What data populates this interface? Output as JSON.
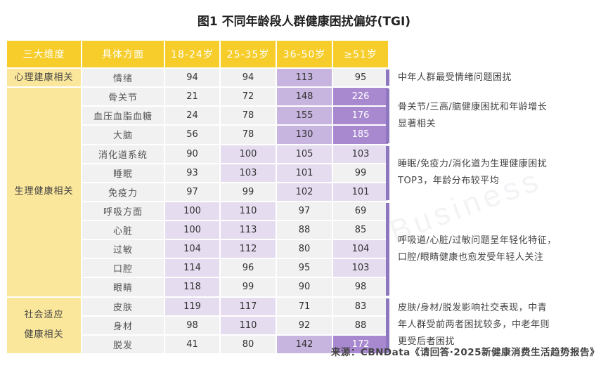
{
  "title": "图1 不同年龄段人群健康困扰偏好(TGI)",
  "watermark": "新营养",
  "watermark_sub": "New Nutrition Business",
  "source": "来源：CBNData《请回答·2025新健康消费生活趋势报告》",
  "colors": {
    "header": "#f6cd2a",
    "category": "#fbe79b",
    "neutral": "#f1f1f1",
    "light": "#e6dcf0",
    "medium": "#c7b4df",
    "strong": "#a889cf",
    "bracket": "#8d78c0"
  },
  "chart_data": {
    "type": "table",
    "title": "图1 不同年龄段人群健康困扰偏好(TGI)",
    "headers": [
      "三大维度",
      "具体方面",
      "18-24岁",
      "25-35岁",
      "36-50岁",
      "≥51岁"
    ],
    "categories": [
      {
        "name": "心理建康相关",
        "rows": 1
      },
      {
        "name": "生理健康相关",
        "rows": 11
      },
      {
        "name": "社会适应健康相关",
        "lines": [
          "社会适应",
          "健康相关"
        ],
        "rows": 3
      }
    ],
    "rows": [
      {
        "item": "情绪",
        "values": [
          94,
          94,
          113,
          95
        ],
        "levels": [
          "n",
          "n",
          "m",
          "n"
        ]
      },
      {
        "item": "骨关节",
        "values": [
          21,
          72,
          148,
          226
        ],
        "levels": [
          "n",
          "n",
          "m",
          "s"
        ]
      },
      {
        "item": "血压血脂血糖",
        "values": [
          24,
          78,
          155,
          176
        ],
        "levels": [
          "n",
          "n",
          "m",
          "s"
        ]
      },
      {
        "item": "大脑",
        "values": [
          56,
          78,
          130,
          185
        ],
        "levels": [
          "n",
          "n",
          "m",
          "s"
        ]
      },
      {
        "item": "消化道系统",
        "values": [
          90,
          100,
          105,
          103
        ],
        "levels": [
          "n",
          "l",
          "l",
          "l"
        ]
      },
      {
        "item": "睡眠",
        "values": [
          93,
          103,
          101,
          99
        ],
        "levels": [
          "n",
          "l",
          "l",
          "n"
        ]
      },
      {
        "item": "免疫力",
        "values": [
          97,
          99,
          102,
          101
        ],
        "levels": [
          "n",
          "n",
          "l",
          "l"
        ]
      },
      {
        "item": "呼吸方面",
        "values": [
          100,
          110,
          97,
          69
        ],
        "levels": [
          "l",
          "l",
          "n",
          "n"
        ]
      },
      {
        "item": "心脏",
        "values": [
          100,
          113,
          88,
          85
        ],
        "levels": [
          "l",
          "l",
          "n",
          "n"
        ]
      },
      {
        "item": "过敏",
        "values": [
          104,
          112,
          80,
          104
        ],
        "levels": [
          "l",
          "l",
          "n",
          "l"
        ]
      },
      {
        "item": "口腔",
        "values": [
          114,
          96,
          95,
          103
        ],
        "levels": [
          "l",
          "n",
          "n",
          "l"
        ]
      },
      {
        "item": "眼睛",
        "values": [
          118,
          99,
          90,
          98
        ],
        "levels": [
          "l",
          "n",
          "n",
          "n"
        ]
      },
      {
        "item": "皮肤",
        "values": [
          119,
          117,
          71,
          83
        ],
        "levels": [
          "l",
          "l",
          "n",
          "n"
        ]
      },
      {
        "item": "身材",
        "values": [
          98,
          110,
          92,
          88
        ],
        "levels": [
          "n",
          "l",
          "n",
          "n"
        ]
      },
      {
        "item": "脱发",
        "values": [
          41,
          80,
          142,
          172
        ],
        "levels": [
          "n",
          "n",
          "m",
          "s"
        ]
      }
    ],
    "annotations": [
      {
        "rows": [
          0,
          0
        ],
        "lines": [
          "中年人群最受情绪问题困扰"
        ]
      },
      {
        "rows": [
          1,
          3
        ],
        "lines": [
          "骨关节/三高/脑健康困扰和年龄增长",
          "显著相关"
        ]
      },
      {
        "rows": [
          4,
          6
        ],
        "lines": [
          "睡眠/免疫力/消化道为生理健康困扰",
          "TOP3，年龄分布较平均"
        ]
      },
      {
        "rows": [
          7,
          11
        ],
        "lines": [
          "呼吸道/心脏/过敏问题呈年轻化特征，",
          "口腔/眼睛健康也愈发受年轻人关注"
        ]
      },
      {
        "rows": [
          12,
          14
        ],
        "lines": [
          "皮肤/身材/脱发影响社交表现，中青",
          "年人群受前两者困扰较多，中老年则",
          "更受后者困扰"
        ]
      }
    ]
  }
}
